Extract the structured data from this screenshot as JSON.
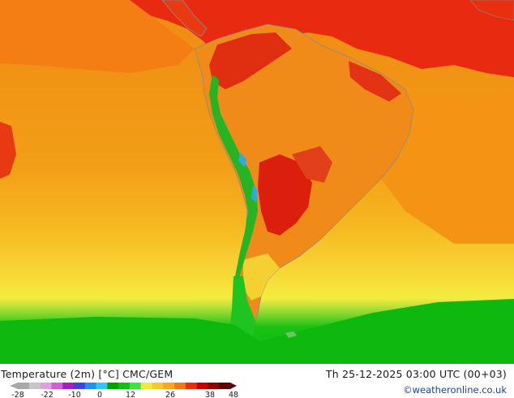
{
  "map": {
    "title": "Temperature (2m) [°C] CMC/GEM",
    "datetime": "Th 25-12-2025 03:00 UTC (00+03)",
    "credit": "©weatheronline.co.uk",
    "region": "South America"
  },
  "legend": {
    "ticks": [
      "-28",
      "-22",
      "-10",
      "0",
      "12",
      "26",
      "38",
      "48"
    ],
    "colors": [
      "#a8a8a8",
      "#c6c6c6",
      "#e0a0e0",
      "#d060d0",
      "#a020c0",
      "#4040e0",
      "#2090e8",
      "#30c8f0",
      "#00a000",
      "#10c010",
      "#40e040",
      "#f0e840",
      "#f8c830",
      "#f8a820",
      "#f07818",
      "#e83010",
      "#c80000",
      "#900000",
      "#5a0000"
    ]
  },
  "colors": {
    "ocean_warm": "#f29a12",
    "ocean_mid": "#f6bf24",
    "ocean_cool": "#f8e23a",
    "cold_green": "#0cc00c",
    "hot_red": "#e82a10",
    "land_orange": "#f08a18",
    "coast": "#8c8c8c"
  }
}
